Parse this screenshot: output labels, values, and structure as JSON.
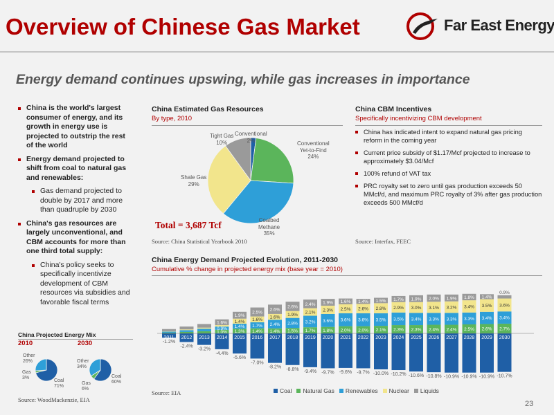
{
  "header": {
    "title": "Overview of Chinese Gas Market",
    "logo_text": "Far East Energy",
    "subtitle": "Energy demand continues upswing, while gas increases in importance"
  },
  "left_bullets": [
    {
      "text": "China is the world's largest consumer of energy, and its growth in energy use is projected to outstrip the rest of the world",
      "sub": []
    },
    {
      "text": "Energy demand projected to shift from coal to natural gas and renewables:",
      "sub": [
        "Gas demand projected to double by 2017 and more than quadruple by 2030"
      ]
    },
    {
      "text": "China's gas resources are largely unconventional, and CBM accounts for more than one third total supply:",
      "sub": [
        "China's policy seeks to specifically incentivize development of CBM resources via subsidies and favorable fiscal terms"
      ]
    }
  ],
  "resources": {
    "title": "China Estimated Gas Resources",
    "subtitle": "By type, 2010",
    "total": "Total = 3,687 Tcf",
    "source": "Source: China Statistical Yearbook 2010",
    "labels": {
      "conventional": [
        "Conventional",
        "2%"
      ],
      "ytf": [
        "Conventional",
        "Yet-to-Find",
        "24%"
      ],
      "cbm": [
        "Coalbed",
        "Methane",
        "35%"
      ],
      "shale": [
        "Shale Gas",
        "29%"
      ],
      "tight": [
        "Tight Gas",
        "10%"
      ]
    }
  },
  "cbm": {
    "title": "China CBM Incentives",
    "subtitle": "Specifically incentivizing CBM development",
    "items": [
      "China has indicated intent to expand natural gas pricing reform in the coming year",
      "Current price subsidy of $1.17/Mcf projected to increase to approximately $3.04/Mcf",
      "100% refund of VAT tax",
      "PRC royalty set to zero until gas production exceeds 50 MMcf/d, and maximum PRC royalty of 3% after gas production exceeds 500 MMcf/d"
    ],
    "source": "Source: Interfax, FEEC"
  },
  "mix": {
    "title": "China Projected Energy Mix",
    "year_a": "2010",
    "year_b": "2030",
    "a_labels": {
      "other": [
        "Other",
        "26%"
      ],
      "gas": [
        "Gas",
        "3%"
      ],
      "coal": [
        "Coal",
        "71%"
      ]
    },
    "b_labels": {
      "other": [
        "Other",
        "34%"
      ],
      "gas": [
        "Gas",
        "6%"
      ],
      "coal": [
        "Coal",
        "60%"
      ]
    },
    "source": "Source: WoodMackenzie, EIA"
  },
  "demand": {
    "title": "China Energy Demand Projected Evolution, 2011-2030",
    "subtitle": "Cumulative % change in projected energy mix (base year = 2010)",
    "source": "Source: EIA"
  },
  "page_number": "23",
  "colors": {
    "brand_red": "#b00000",
    "coal": "#1f5fa6",
    "natural_gas": "#5bb55b",
    "renewables": "#2e9fd8",
    "nuclear": "#f2e58c",
    "liquids": "#9a9a9a"
  },
  "chart_data": [
    {
      "type": "pie",
      "labels": [
        "Conventional",
        "Conventional Yet-to-Find",
        "Coalbed Methane",
        "Shale Gas",
        "Tight Gas"
      ],
      "values": [
        2,
        24,
        35,
        29,
        10
      ],
      "colors": [
        "#1f5fa6",
        "#5bb55b",
        "#2e9fd8",
        "#f2e58c",
        "#9a9a9a"
      ]
    },
    {
      "type": "pie",
      "labels": [
        "Coal",
        "Gas",
        "Other"
      ],
      "values": [
        71,
        3,
        26
      ],
      "colors": [
        "#1f5fa6",
        "#5bb55b",
        "#2e9fd8"
      ]
    },
    {
      "type": "pie",
      "labels": [
        "Coal",
        "Gas",
        "Other"
      ],
      "values": [
        60,
        6,
        34
      ],
      "colors": [
        "#1f5fa6",
        "#5bb55b",
        "#2e9fd8"
      ]
    },
    {
      "type": "bar",
      "stacked": true,
      "categories": [
        "2011",
        "2012",
        "2013",
        "2014",
        "2015",
        "2016",
        "2017",
        "2018",
        "2019",
        "2020",
        "2021",
        "2022",
        "2023",
        "2024",
        "2025",
        "2026",
        "2027",
        "2028",
        "2029",
        "2030"
      ],
      "series": [
        {
          "name": "Coal",
          "color": "#1f5fa6",
          "values": [
            -1.2,
            -2.4,
            -3.2,
            -4.4,
            -5.6,
            -7.0,
            -8.2,
            -8.8,
            -9.4,
            -9.7,
            -9.6,
            -9.7,
            -10.0,
            -10.2,
            -10.6,
            -10.8,
            -10.9,
            -10.9,
            -10.9,
            -10.7
          ]
        },
        {
          "name": "Natural Gas",
          "color": "#5bb55b",
          "values": [
            0.2,
            0.4,
            0.6,
            1.0,
            1.3,
            1.4,
            1.4,
            1.5,
            1.7,
            1.8,
            2.0,
            2.0,
            2.1,
            2.3,
            2.3,
            2.4,
            2.4,
            2.5,
            2.6,
            2.7
          ]
        },
        {
          "name": "Renewables",
          "color": "#2e9fd8",
          "values": [
            0.3,
            0.5,
            0.7,
            0.9,
            1.4,
            1.7,
            2.4,
            2.8,
            3.2,
            3.6,
            3.6,
            3.6,
            3.5,
            3.5,
            3.4,
            3.3,
            3.3,
            3.3,
            3.4,
            3.4
          ]
        },
        {
          "name": "Nuclear",
          "color": "#f2e58c",
          "values": [
            0.1,
            0.2,
            0.3,
            0.4,
            1.4,
            1.6,
            1.6,
            1.9,
            2.1,
            2.3,
            2.5,
            2.6,
            2.8,
            2.9,
            3.0,
            3.1,
            3.2,
            3.4,
            3.5,
            3.6
          ]
        },
        {
          "name": "Liquids",
          "color": "#9a9a9a",
          "values": [
            0.6,
            0.8,
            1.0,
            1.6,
            1.9,
            2.5,
            2.6,
            2.6,
            2.4,
            1.9,
            1.6,
            1.4,
            1.5,
            1.7,
            1.9,
            2.0,
            1.9,
            1.8,
            1.4,
            0.9
          ]
        }
      ],
      "labels": {
        "Coal": [
          "-1.2%",
          "-2.4%",
          "-3.2%",
          "-4.4%",
          "-5.6%",
          "-7.0%",
          "-8.2%",
          "-8.8%",
          "-9.4%",
          "-9.7%",
          "-9.6%",
          "-9.7%",
          "-10.0%",
          "-10.2%",
          "-10.6%",
          "-10.8%",
          "-10.9%",
          "-10.9%",
          "-10.9%",
          "-10.7%"
        ],
        "Natural Gas": [
          "",
          "",
          "",
          "1.0%",
          "1.3%",
          "1.4%",
          "1.4%",
          "1.5%",
          "1.7%",
          "1.8%",
          "2.0%",
          "2.0%",
          "2.1%",
          "2.3%",
          "2.3%",
          "2.4%",
          "2.4%",
          "2.5%",
          "2.6%",
          "2.7%"
        ],
        "Renewables": [
          "",
          "",
          "",
          "0.9%",
          "1.4%",
          "1.7%",
          "2.4%",
          "2.8%",
          "3.2%",
          "3.6%",
          "3.6%",
          "3.6%",
          "3.5%",
          "3.5%",
          "3.4%",
          "3.3%",
          "3.3%",
          "3.3%",
          "3.4%",
          "3.4%"
        ],
        "Nuclear": [
          "",
          "",
          "",
          "",
          "1.4%",
          "1.6%",
          "1.6%",
          "1.9%",
          "2.1%",
          "2.3%",
          "2.5%",
          "2.6%",
          "2.8%",
          "2.9%",
          "3.0%",
          "3.1%",
          "3.2%",
          "3.4%",
          "3.5%",
          "3.6%"
        ],
        "Liquids": [
          "",
          "",
          "",
          "1.6%",
          "1.9%",
          "2.5%",
          "2.6%",
          "2.6%",
          "2.4%",
          "1.9%",
          "1.6%",
          "1.4%",
          "1.5%",
          "1.7%",
          "1.9%",
          "2.0%",
          "1.9%",
          "1.8%",
          "1.4%",
          "0.9%"
        ]
      },
      "legend": [
        "Coal",
        "Natural Gas",
        "Renewables",
        "Nuclear",
        "Liquids"
      ],
      "legend_position": "bottom"
    }
  ]
}
